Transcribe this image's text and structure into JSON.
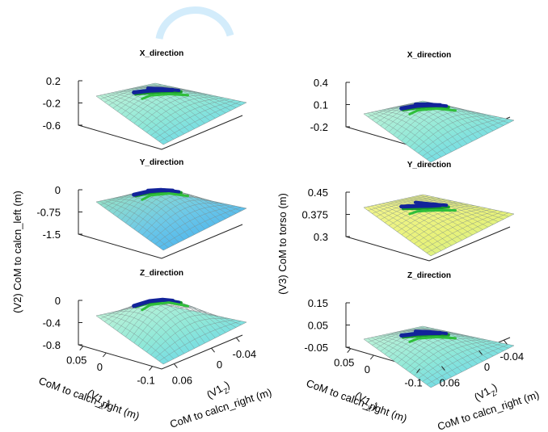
{
  "chart_data": [
    {
      "type": "surface",
      "title": "X_direction",
      "zlim": [
        -0.6,
        0.2
      ],
      "zticks": [
        0.2,
        -0.2,
        -0.6
      ]
    },
    {
      "type": "surface",
      "title": "Y_direction",
      "zlim": [
        -1.5,
        0
      ],
      "zticks": [
        0,
        -0.75,
        -1.5
      ],
      "zlabel": "(V2) CoM to calcn_left (m)"
    },
    {
      "type": "surface",
      "title": "Z_direction",
      "zlim": [
        -0.8,
        0
      ],
      "zticks": [
        0,
        -0.4,
        -0.8
      ],
      "xlim": [
        0.06,
        -0.12
      ],
      "xticks": [
        0.05,
        0,
        -0.1
      ],
      "ylim": [
        0.08,
        -0.05
      ],
      "yticks": [
        0.06,
        0,
        -0.04
      ],
      "xlabel_var": "(V1",
      "xlabel_sub": "X",
      "xlabel_close": ")",
      "xlabel": "CoM to calcn_right (m)",
      "ylabel_var": "(V1",
      "ylabel_sub": "Z",
      "ylabel_close": ")",
      "ylabel": "CoM to calcn_right (m)"
    },
    {
      "type": "surface",
      "title": "X_direction",
      "zlim": [
        -0.2,
        0.4
      ],
      "zticks": [
        0.4,
        0.1,
        -0.2
      ]
    },
    {
      "type": "surface",
      "title": "Y_direction",
      "zlim": [
        0.3,
        0.45
      ],
      "zticks": [
        0.45,
        0.375,
        0.3
      ],
      "zlabel": "(V3) CoM to torso (m)"
    },
    {
      "type": "surface",
      "title": "Z_direction",
      "zlim": [
        -0.05,
        0.15
      ],
      "zticks": [
        0.15,
        0.05,
        -0.05
      ],
      "xlim": [
        0.06,
        -0.12
      ],
      "xticks": [
        0.05,
        0,
        -0.1
      ],
      "ylim": [
        0.08,
        -0.05
      ],
      "yticks": [
        0.06,
        0,
        -0.04
      ],
      "xlabel_var": "(V1",
      "xlabel_sub": "X",
      "xlabel_close": ")",
      "xlabel": "CoM to calcn_right (m)",
      "ylabel_var": "(V1",
      "ylabel_sub": "Z",
      "ylabel_close": ")",
      "ylabel": "CoM to calcn_right (m)"
    }
  ]
}
